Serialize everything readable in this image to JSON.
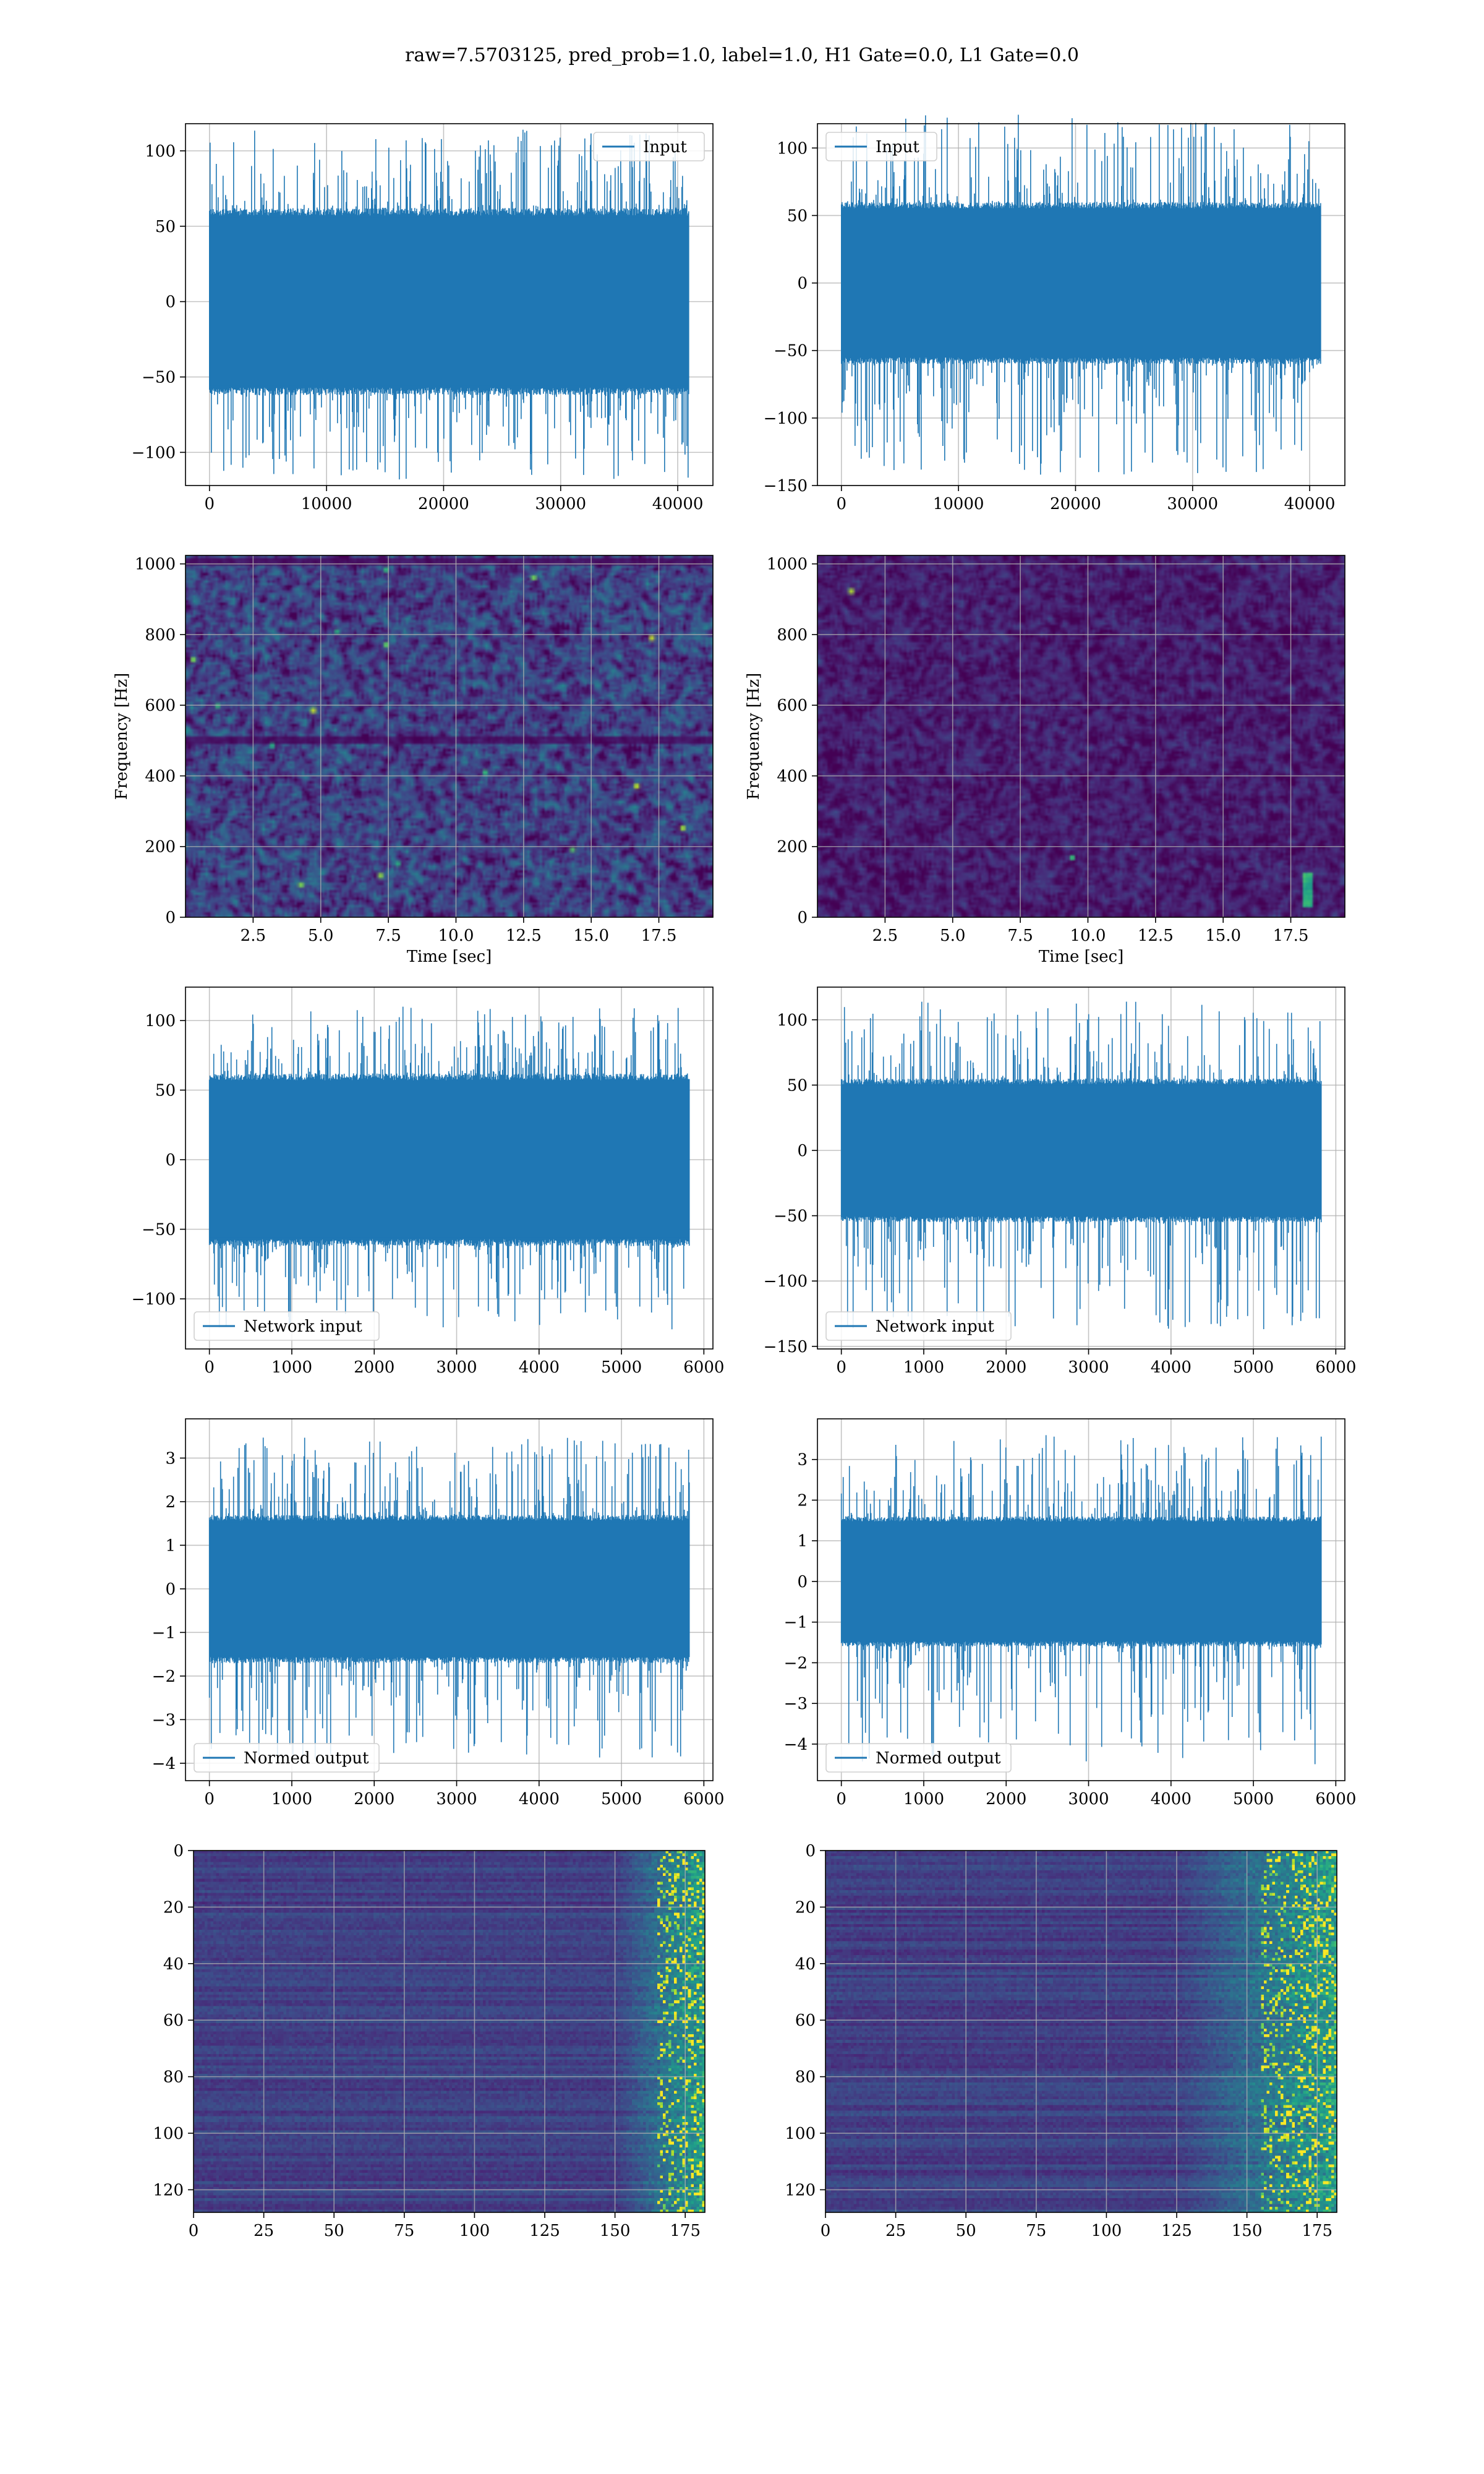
{
  "figure": {
    "suptitle": "raw=7.5703125, pred_prob=1.0, label=1.0, H1 Gate=0.0, L1 Gate=0.0"
  },
  "colors": {
    "line": "#1f77b4",
    "viridis": [
      "#440154",
      "#482878",
      "#3e4a89",
      "#31688e",
      "#26828e",
      "#1f9e89",
      "#35b779",
      "#6ece58",
      "#b5de2b",
      "#fde725"
    ],
    "grid": "#b0b0b0",
    "axes_edge": "#000000"
  },
  "chart_data": [
    {
      "id": "r1c1",
      "type": "line",
      "legend": "Input",
      "legend_loc": "upper right",
      "xlim": [
        -2048,
        43008
      ],
      "ylim": [
        -122,
        118
      ],
      "xticks": [
        0,
        10000,
        20000,
        30000,
        40000
      ],
      "yticks": [
        -100,
        -50,
        0,
        50,
        100
      ],
      "xlabel": "",
      "ylabel": "",
      "signal": {
        "n": 40960,
        "x_start": 0,
        "x_end": 40960,
        "body_amplitude": [
          -62,
          62
        ],
        "peak_range": [
          -118,
          115
        ],
        "ramp_end": 0
      }
    },
    {
      "id": "r1c2",
      "type": "line",
      "legend": "Input",
      "legend_loc": "upper left",
      "xlim": [
        -2048,
        43008
      ],
      "ylim": [
        -150,
        118
      ],
      "xticks": [
        0,
        10000,
        20000,
        30000,
        40000
      ],
      "yticks": [
        -150,
        -100,
        -50,
        0,
        50,
        100
      ],
      "xlabel": "",
      "ylabel": "",
      "signal": {
        "n": 40960,
        "x_start": 0,
        "x_end": 40960,
        "body_amplitude": [
          -60,
          60
        ],
        "peak_range": [
          -142,
          125
        ],
        "ramp_end": 0
      }
    },
    {
      "id": "r2c1",
      "type": "heatmap",
      "xlim": [
        0,
        19.5
      ],
      "ylim": [
        0,
        1024
      ],
      "xticks": [
        2.5,
        5.0,
        7.5,
        10.0,
        12.5,
        15.0,
        17.5
      ],
      "yticks": [
        0,
        200,
        400,
        600,
        800,
        1000
      ],
      "xlabel": "Time [sec]",
      "ylabel": "Frequency [Hz]",
      "field": {
        "mean_level": 0.28,
        "speckle": 0.32,
        "dark_bands_hz": [
          505,
          1010
        ],
        "hot_spots": 16,
        "chirp": false
      }
    },
    {
      "id": "r2c2",
      "type": "heatmap",
      "xlim": [
        0,
        19.5
      ],
      "ylim": [
        0,
        1024
      ],
      "xticks": [
        2.5,
        5.0,
        7.5,
        10.0,
        12.5,
        15.0,
        17.5
      ],
      "yticks": [
        0,
        200,
        400,
        600,
        800,
        1000
      ],
      "xlabel": "Time [sec]",
      "ylabel": "Frequency [Hz]",
      "field": {
        "mean_level": 0.12,
        "speckle": 0.18,
        "dark_bands_hz": [],
        "hot_spots": 2,
        "chirp": true,
        "chirp_time": [
          17.9,
          18.3
        ],
        "chirp_freq": [
          30,
          130
        ]
      }
    },
    {
      "id": "r3c1",
      "type": "line",
      "legend": "Network input",
      "legend_loc": "lower left",
      "xlim": [
        -290,
        6110
      ],
      "ylim": [
        -136,
        124
      ],
      "xticks": [
        0,
        1000,
        2000,
        3000,
        4000,
        5000,
        6000
      ],
      "yticks": [
        -100,
        -50,
        0,
        50,
        100
      ],
      "xlabel": "",
      "ylabel": "",
      "signal": {
        "n": 5820,
        "x_start": 0,
        "x_end": 5820,
        "body_amplitude": [
          -62,
          62
        ],
        "peak_range": [
          -122,
          110
        ],
        "ramp_end": 0
      }
    },
    {
      "id": "r3c2",
      "type": "line",
      "legend": "Network input",
      "legend_loc": "lower left",
      "xlim": [
        -290,
        6110
      ],
      "ylim": [
        -152,
        125
      ],
      "xticks": [
        0,
        1000,
        2000,
        3000,
        4000,
        5000,
        6000
      ],
      "yticks": [
        -150,
        -100,
        -50,
        0,
        50,
        100
      ],
      "xlabel": "",
      "ylabel": "",
      "signal": {
        "n": 5820,
        "x_start": 0,
        "x_end": 5820,
        "body_amplitude": [
          -55,
          55
        ],
        "peak_range": [
          -138,
          114
        ],
        "ramp_end": 0
      }
    },
    {
      "id": "r4c1",
      "type": "line",
      "legend": "Normed output",
      "legend_loc": "lower left",
      "xlim": [
        -290,
        6110
      ],
      "ylim": [
        -4.4,
        3.9
      ],
      "xticks": [
        0,
        1000,
        2000,
        3000,
        4000,
        5000,
        6000
      ],
      "yticks": [
        -4,
        -3,
        -2,
        -1,
        0,
        1,
        2,
        3
      ],
      "xlabel": "",
      "ylabel": "",
      "signal": {
        "n": 5820,
        "x_start": 0,
        "x_end": 5820,
        "body_amplitude": [
          -1.7,
          1.7
        ],
        "peak_range": [
          -3.9,
          3.5
        ],
        "ramp_end": 0
      }
    },
    {
      "id": "r4c2",
      "type": "line",
      "legend": "Normed output",
      "legend_loc": "lower left",
      "xlim": [
        -290,
        6110
      ],
      "ylim": [
        -4.9,
        4.0
      ],
      "xticks": [
        0,
        1000,
        2000,
        3000,
        4000,
        5000,
        6000
      ],
      "yticks": [
        -4,
        -3,
        -2,
        -1,
        0,
        1,
        2,
        3
      ],
      "xlabel": "",
      "ylabel": "",
      "signal": {
        "n": 5820,
        "x_start": 0,
        "x_end": 5820,
        "body_amplitude": [
          -1.6,
          1.6
        ],
        "peak_range": [
          -4.5,
          3.6
        ],
        "ramp_end": 0
      }
    },
    {
      "id": "r5c1",
      "type": "heatmap",
      "xlim": [
        0,
        182
      ],
      "ylim": [
        128,
        0
      ],
      "xticks": [
        0,
        25,
        50,
        75,
        100,
        125,
        150,
        175
      ],
      "yticks": [
        0,
        20,
        40,
        60,
        80,
        100,
        120
      ],
      "xlabel": "",
      "ylabel": "",
      "rows": 128,
      "cols": 182,
      "field": {
        "base": 0.1,
        "active_from_col": 150,
        "bright_from_col": 165
      }
    },
    {
      "id": "r5c2",
      "type": "heatmap",
      "xlim": [
        0,
        182
      ],
      "ylim": [
        128,
        0
      ],
      "xticks": [
        0,
        25,
        50,
        75,
        100,
        125,
        150,
        175
      ],
      "yticks": [
        0,
        20,
        40,
        60,
        80,
        100,
        120
      ],
      "xlabel": "",
      "ylabel": "",
      "rows": 128,
      "cols": 182,
      "field": {
        "base": 0.1,
        "active_from_col": 125,
        "bright_from_col": 155
      }
    }
  ]
}
